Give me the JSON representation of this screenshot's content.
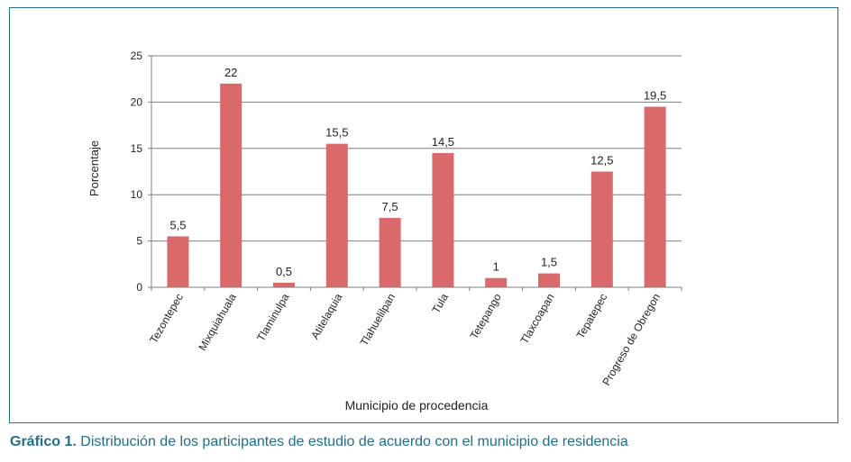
{
  "caption": {
    "label": "Gráfico 1.",
    "text": " Distribución de los participantes de estudio de acuerdo con el municipio de residencia"
  },
  "colors": {
    "bar": "#d9696a",
    "grid": "#7f7f7f",
    "frame": "#1f6f8b",
    "caption": "#1f6f8b"
  },
  "chart_data": {
    "type": "bar",
    "xlabel": "Municipio de procedencia",
    "ylabel": "Porcentaje",
    "ylim": [
      0,
      25
    ],
    "yticks": [
      "0",
      "5",
      "10",
      "15",
      "20",
      "25"
    ],
    "grid": true,
    "categories": [
      "Tezontepec",
      "Mixquiahuala",
      "Tlaminulpa",
      "Atitelaquia",
      "Tlahuelilpan",
      "Tula",
      "Tetepango",
      "Tlaxcoapan",
      "Tepatepec",
      "Progreso de Obregon"
    ],
    "values": [
      5.5,
      22,
      0.5,
      15.5,
      7.5,
      14.5,
      1,
      1.5,
      12.5,
      19.5
    ],
    "value_labels": [
      "5,5",
      "22",
      "0,5",
      "15,5",
      "7,5",
      "14,5",
      "1",
      "1,5",
      "12,5",
      "19,5"
    ]
  }
}
